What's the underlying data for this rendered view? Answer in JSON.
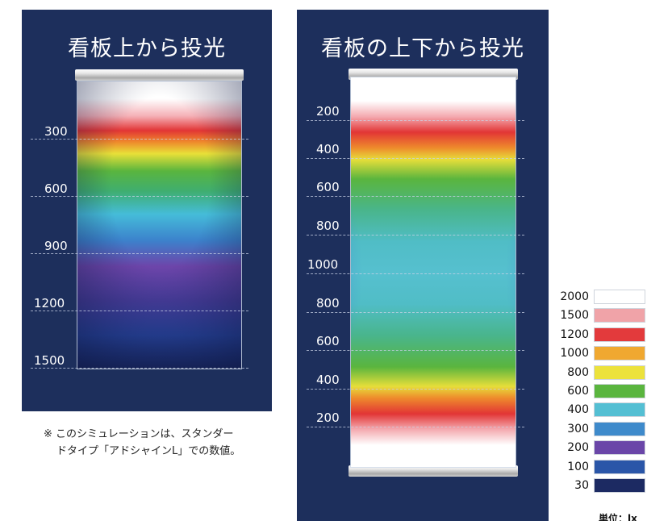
{
  "left_panel": {
    "title": "看板上から投光",
    "ticks": [
      "300",
      "600",
      "900",
      "1200",
      "1500"
    ]
  },
  "right_panel": {
    "title": "看板の上下から投光",
    "ticks": [
      "200",
      "400",
      "600",
      "800",
      "1000",
      "800",
      "600",
      "400",
      "200"
    ]
  },
  "note": {
    "line1": "※ このシミュレーションは、スタンダー",
    "line2": "ドタイプ「アドシャインL」での数値。"
  },
  "legend": {
    "items": [
      {
        "label": "2000",
        "color": "#ffffff"
      },
      {
        "label": "1500",
        "color": "#f0a3a8"
      },
      {
        "label": "1200",
        "color": "#e33a3c"
      },
      {
        "label": "1000",
        "color": "#f0a830"
      },
      {
        "label": "800",
        "color": "#ece23c"
      },
      {
        "label": "600",
        "color": "#5ab53e"
      },
      {
        "label": "400",
        "color": "#54bfd3"
      },
      {
        "label": "300",
        "color": "#3e8acb"
      },
      {
        "label": "200",
        "color": "#6a46a8"
      },
      {
        "label": "100",
        "color": "#2a56a8"
      },
      {
        "label": "30",
        "color": "#1c2a62"
      }
    ],
    "unit": "単位：lx"
  }
}
